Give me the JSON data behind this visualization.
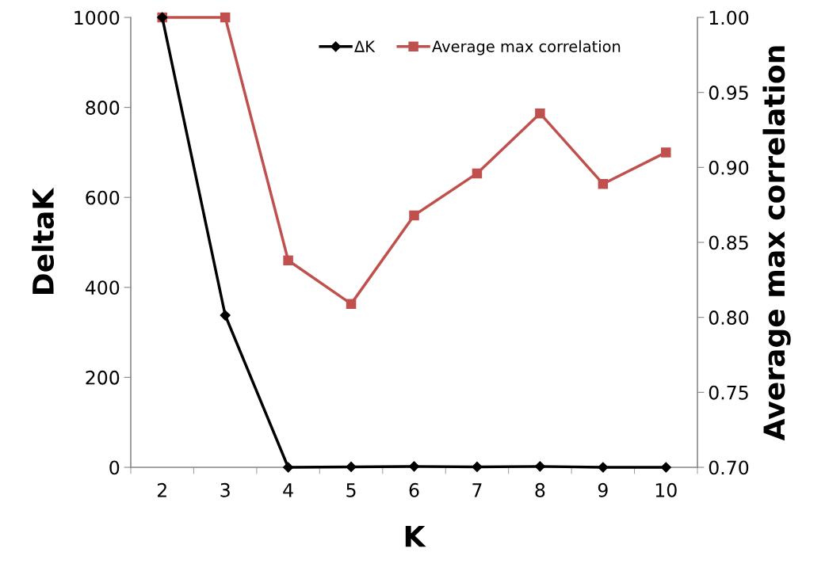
{
  "chart_data": {
    "type": "line",
    "xlabel": "K",
    "ylabel": "DeltaK",
    "y2label": "Average max correlation",
    "categories": [
      "2",
      "3",
      "4",
      "5",
      "6",
      "7",
      "8",
      "9",
      "10"
    ],
    "series": [
      {
        "name": "ΔK",
        "color": "#000000",
        "marker": "diamond",
        "values": [
          1000,
          338,
          0,
          1,
          2,
          1,
          2,
          0,
          0
        ]
      },
      {
        "name": "Average max correlation",
        "color": "#c0504d",
        "marker": "square",
        "axis": "y2",
        "values": [
          1.0,
          1.0,
          0.838,
          0.809,
          0.868,
          0.896,
          0.936,
          0.889,
          0.91
        ]
      }
    ],
    "ylim": [
      0,
      1000
    ],
    "yticks": [
      0,
      200,
      400,
      600,
      800,
      1000
    ],
    "y2lim": [
      0.7,
      1.0
    ],
    "y2ticks": [
      {
        "value": 0.7,
        "label": "0.70"
      },
      {
        "value": 0.75,
        "label": "0.75"
      },
      {
        "value": 0.8,
        "label": "0.80"
      },
      {
        "value": 0.85,
        "label": "0.85"
      },
      {
        "value": 0.9,
        "label": "0.90"
      },
      {
        "value": 0.95,
        "label": "0.95"
      },
      {
        "value": 1.0,
        "label": "1.00"
      }
    ],
    "grid": false,
    "legend": "top",
    "line_style": "solid"
  }
}
